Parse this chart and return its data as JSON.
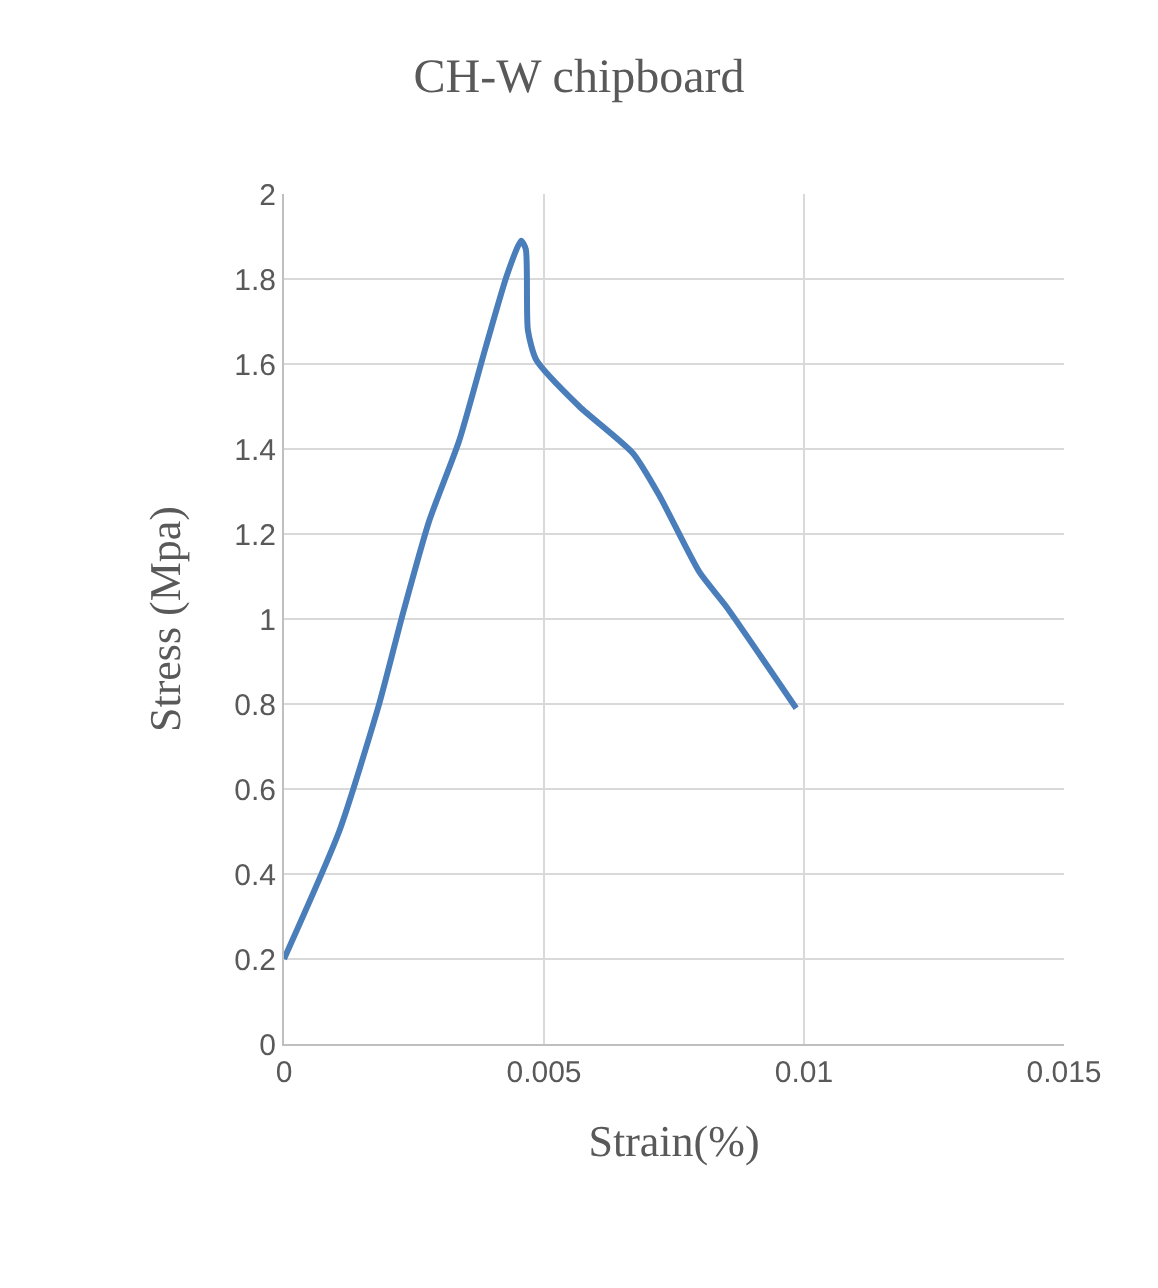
{
  "chart_data": {
    "type": "line",
    "title": "CH-W chipboard",
    "xlabel": "Strain(%)",
    "ylabel": "Stress (Mpa)",
    "series": [
      {
        "color": "#4a7ebb",
        "x": [
          0,
          0.00106,
          0.00183,
          0.00228,
          0.00279,
          0.00337,
          0.00388,
          0.00429,
          0.00456,
          0.00465,
          0.00469,
          0.00485,
          0.00568,
          0.00671,
          0.00722,
          0.00799,
          0.0085,
          0.00985
        ],
        "values": [
          0.2,
          0.5,
          0.8,
          1.01,
          1.23,
          1.42,
          1.64,
          1.81,
          1.89,
          1.87,
          1.68,
          1.61,
          1.5,
          1.39,
          1.29,
          1.11,
          1.03,
          0.79
        ]
      }
    ],
    "xlim": [
      0,
      0.015
    ],
    "xticks": [
      0,
      0.005,
      0.01,
      0.015
    ],
    "ylim": [
      0,
      2
    ],
    "yticks": [
      0,
      0.2,
      0.4,
      0.6,
      0.8,
      1,
      1.2,
      1.4,
      1.6,
      1.8,
      2
    ],
    "grid": true,
    "marker": "none",
    "line_style": "solid"
  }
}
